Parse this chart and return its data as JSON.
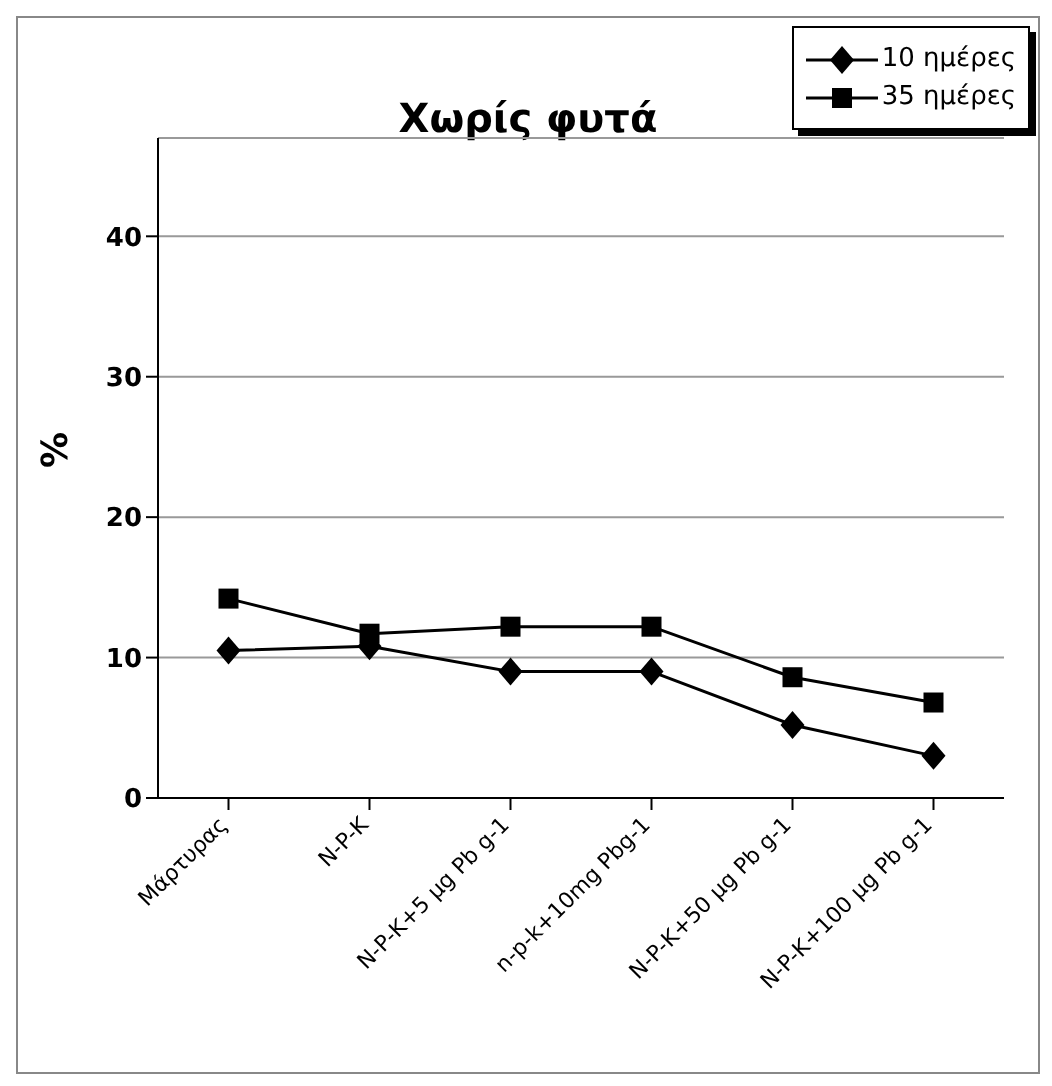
{
  "chart_data": {
    "type": "line",
    "title": "Χωρίς φυτά",
    "ylabel": "%",
    "categories": [
      "Μάρτυρας",
      "N-P-K",
      "N-P-K+5 μg Pb g-1",
      "n-p-k+10mg Pbg-1",
      "N-P-K+50 μg Pb g-1",
      "N-P-K+100 μg Pb g-1"
    ],
    "series": [
      {
        "name": "10 ημέρες",
        "color": "#000000",
        "marker": "diamond",
        "values": [
          10.5,
          10.8,
          9.0,
          9.0,
          5.2,
          3.0
        ]
      },
      {
        "name": "35 ημέρες",
        "color": "#000000",
        "marker": "square",
        "values": [
          14.2,
          11.7,
          12.2,
          12.2,
          8.6,
          6.8
        ]
      }
    ],
    "ylim": [
      0,
      47
    ],
    "yticks": [
      0,
      10,
      20,
      30,
      40
    ],
    "grid": "y",
    "legend": "top right",
    "line_style": "solid"
  }
}
